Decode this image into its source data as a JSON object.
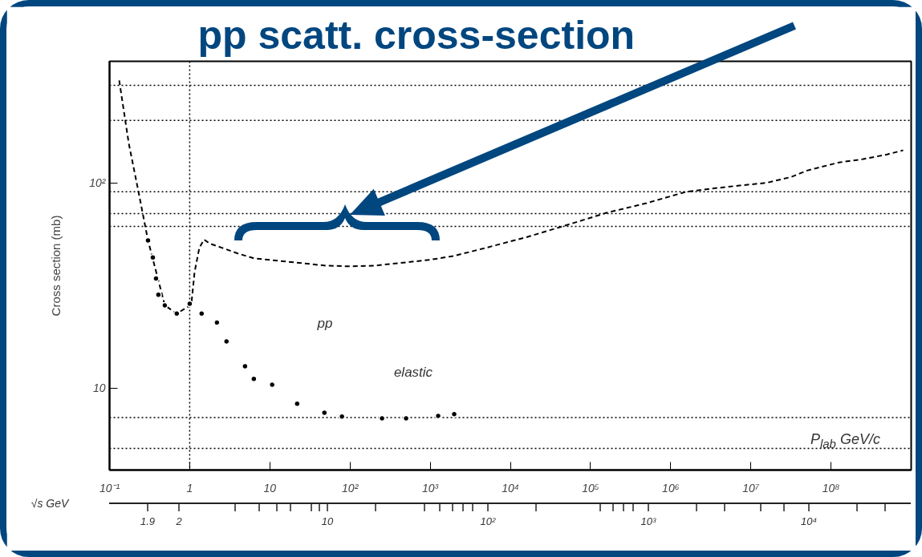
{
  "chart_data": {
    "type": "line",
    "title": "pp scatt. cross-section",
    "xlabel": "P$_{lab}$ GeV/c",
    "ylabel": "Cross section (mb)",
    "log": "xy",
    "xlim": [
      0.1,
      1000000000
    ],
    "ylim": [
      4,
      390
    ],
    "xticks": [
      {
        "value": 0.1,
        "label": "10⁻¹"
      },
      1,
      10,
      {
        "value": 100,
        "label": "10²"
      },
      {
        "value": 1000,
        "label": "10³"
      },
      {
        "value": 10000,
        "label": "10⁴"
      },
      {
        "value": 100000,
        "label": "10⁵"
      },
      {
        "value": 1000000,
        "label": "10⁶"
      },
      {
        "value": 10000000,
        "label": "10⁷"
      },
      {
        "value": 100000000,
        "label": "10⁸"
      }
    ],
    "yticks": [
      10,
      {
        "value": 100,
        "label": "10²"
      }
    ],
    "series": [
      {
        "line_style": "dashed",
        "color": "#000000",
        "x": [
          0.132,
          0.174,
          0.229,
          0.302,
          0.49,
          0.69,
          1.047,
          1.15,
          1.32,
          1.51,
          1.78,
          2.51,
          3.98,
          6.31,
          15.8,
          50.1,
          100,
          200,
          501,
          1000,
          2000,
          5010,
          15800,
          50100,
          158000,
          501000,
          1580000,
          5010000,
          15800000,
          31600000,
          50100000,
          126000000,
          251000000,
          501000000,
          794000000
        ],
        "values": [
          315,
          155,
          91,
          52.4,
          25.3,
          23.1,
          25.5,
          36.7,
          48.3,
          52.9,
          50.6,
          48.3,
          45.3,
          42.9,
          41.4,
          39.5,
          39.2,
          39.5,
          41.0,
          42.2,
          44.1,
          48.3,
          54.3,
          62.2,
          71.4,
          79.6,
          90.5,
          95.5,
          100,
          106.6,
          114.6,
          125.6,
          130.3,
          137.4,
          143.9
        ]
      },
      {
        "type": "scatter",
        "marker": "circle",
        "color": "#000000",
        "x": [
          0.302,
          0.347,
          0.38,
          0.407,
          0.49,
          0.69,
          1.0,
          1.41,
          2.19,
          2.88,
          4.9,
          6.31,
          10.7,
          21.9,
          47.9,
          79.4,
          251,
          501,
          1259,
          1995
        ],
        "values": [
          52.4,
          43.3,
          34.2,
          28.5,
          25.3,
          23.1,
          25.8,
          23.1,
          20.9,
          16.9,
          12.8,
          11.1,
          10.4,
          8.41,
          7.6,
          7.28,
          7.14,
          7.14,
          7.34,
          7.48
        ]
      }
    ],
    "ref_lines": [
      {
        "axis": "x",
        "value": 1,
        "line_style": "dotted",
        "color": "#000000"
      },
      {
        "axis": "y",
        "value": 298,
        "line_style": "dotted",
        "color": "#000000"
      },
      {
        "axis": "y",
        "value": 201,
        "line_style": "dotted",
        "color": "#000000"
      },
      {
        "axis": "y",
        "value": 90.5,
        "line_style": "dotted",
        "color": "#000000"
      },
      {
        "axis": "y",
        "value": 70.8,
        "line_style": "dotted",
        "color": "#000000"
      },
      {
        "axis": "y",
        "value": 61.3,
        "line_style": "dotted",
        "color": "#000000"
      },
      {
        "axis": "y",
        "value": 7.2,
        "line_style": "dotted",
        "color": "#000000"
      },
      {
        "axis": "y",
        "value": 5.1,
        "line_style": "dotted",
        "color": "#000000"
      }
    ],
    "annotations": [
      "pp",
      "elastic",
      "√s GeV",
      "1.9",
      "2",
      "10",
      "10²",
      "10³",
      "10⁴"
    ]
  }
}
